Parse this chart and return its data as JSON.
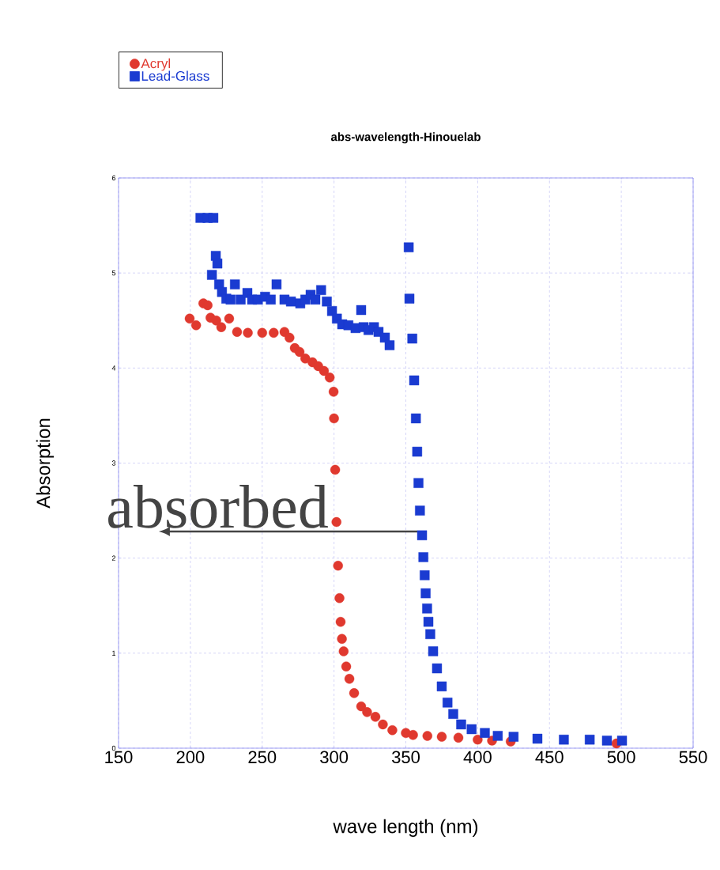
{
  "chart_data": {
    "type": "scatter",
    "title": "abs-wavelength-Hinouelab",
    "xlabel": "wave length (nm)",
    "ylabel": "Absorption",
    "xlim": [
      150,
      550
    ],
    "xticks": [
      150,
      200,
      250,
      300,
      350,
      400,
      450,
      500,
      550
    ],
    "ylim": [
      0,
      6
    ],
    "yticks": [
      0,
      1,
      2,
      3,
      4,
      5,
      6
    ],
    "grid": true,
    "legend": "top left",
    "annotations": [
      {
        "text": "absorbed",
        "x": 358,
        "y": 2.28
      }
    ],
    "series": [
      {
        "name": "Acryl",
        "color": "#e0392f",
        "marker": "circle",
        "x": [
          199.5,
          204,
          209,
          212,
          214,
          218,
          221.5,
          227,
          232.5,
          240,
          250,
          258,
          265.5,
          269,
          272.7,
          276,
          280,
          285,
          289,
          293,
          297,
          299.7,
          300,
          300.8,
          301.7,
          302.8,
          303.8,
          304.6,
          305.5,
          306.7,
          308.5,
          310.7,
          314,
          318.9,
          323,
          328.8,
          334,
          340.6,
          350,
          355,
          365,
          375,
          386.6,
          400,
          410,
          423,
          440,
          459.8,
          480,
          496.6
        ],
        "values": [
          4.52,
          4.45,
          4.68,
          4.66,
          4.53,
          4.5,
          4.43,
          4.52,
          4.38,
          4.37,
          4.37,
          4.37,
          4.38,
          4.32,
          4.21,
          4.17,
          4.1,
          4.06,
          4.02,
          3.97,
          3.9,
          3.75,
          3.47,
          2.93,
          2.38,
          1.92,
          1.58,
          1.33,
          1.15,
          1.02,
          0.86,
          0.73,
          0.58,
          0.44,
          0.38,
          0.33,
          0.25,
          0.19,
          0.16,
          0.14,
          0.13,
          0.12,
          0.11,
          0.09,
          0.08,
          0.07,
          null,
          null,
          null,
          0.05
        ]
      },
      {
        "name": "Lead-Glass",
        "color": "#1a3bd1",
        "marker": "square",
        "x": [
          207,
          212,
          216,
          217.7,
          218.8,
          215,
          220,
          222,
          225,
          228,
          231,
          235,
          239.7,
          243,
          247,
          252,
          256,
          260,
          265.5,
          270,
          276.5,
          280,
          283.7,
          287,
          291,
          295,
          298.6,
          302,
          305.7,
          310,
          315,
          318.9,
          320.6,
          324,
          327.8,
          331,
          335.4,
          338.7,
          352,
          352.5,
          354.5,
          355.8,
          357,
          357.9,
          358.8,
          359.8,
          361.3,
          362.2,
          363.1,
          363.8,
          364.8,
          365.7,
          367,
          369,
          371.7,
          375,
          379,
          383,
          388.5,
          395.8,
          405,
          414,
          425,
          441.6,
          460,
          478,
          490,
          500.5
        ],
        "values": [
          5.58,
          5.58,
          5.58,
          5.18,
          5.1,
          4.98,
          4.88,
          4.8,
          4.73,
          4.72,
          4.88,
          4.72,
          4.79,
          4.72,
          4.72,
          4.75,
          4.72,
          4.88,
          4.72,
          4.7,
          4.68,
          4.72,
          4.77,
          4.72,
          4.82,
          4.7,
          4.6,
          4.52,
          4.46,
          4.45,
          4.42,
          4.61,
          4.43,
          4.4,
          4.43,
          4.38,
          4.32,
          4.24,
          5.27,
          4.73,
          4.31,
          3.87,
          3.47,
          3.12,
          2.79,
          2.5,
          2.24,
          2.01,
          1.82,
          1.63,
          1.47,
          1.33,
          1.2,
          1.02,
          0.84,
          0.65,
          0.48,
          0.36,
          0.25,
          0.2,
          0.16,
          0.13,
          0.12,
          0.1,
          0.09,
          0.09,
          0.08,
          0.08
        ]
      }
    ]
  }
}
